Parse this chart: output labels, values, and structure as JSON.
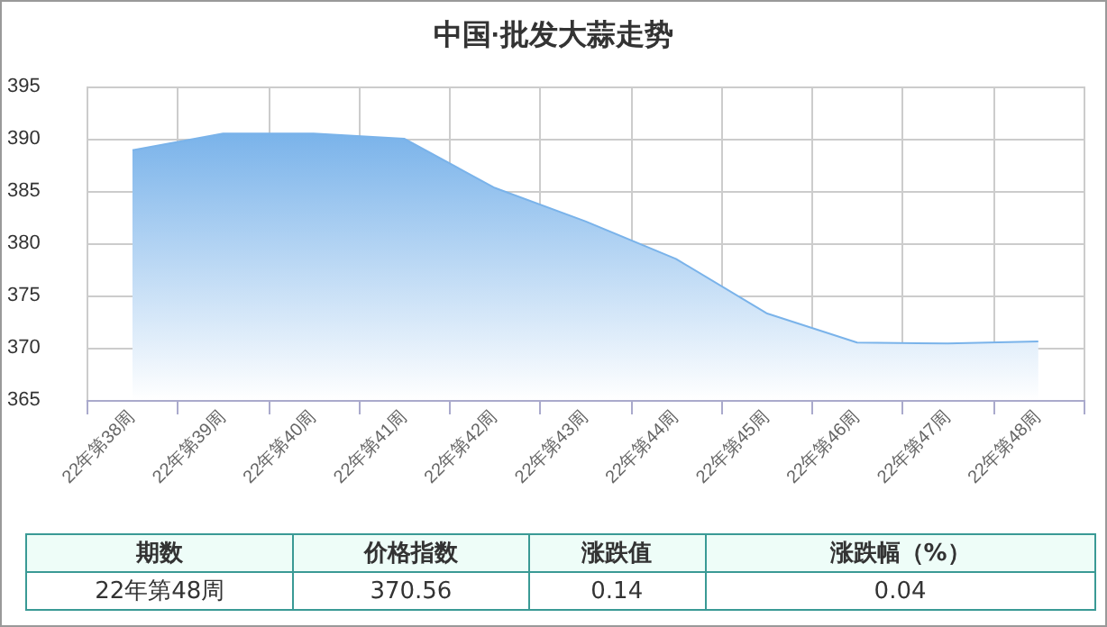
{
  "chart_data": {
    "type": "area",
    "title": "中国·批发大蒜走势",
    "categories": [
      "22年第38周",
      "22年第39周",
      "22年第40周",
      "22年第41周",
      "22年第42周",
      "22年第43周",
      "22年第44周",
      "22年第45周",
      "22年第46周",
      "22年第47周",
      "22年第48周"
    ],
    "series": [
      {
        "color": "#7ab3ea",
        "values": [
          388.9,
          390.5,
          390.5,
          390.0,
          385.3,
          382.1,
          378.5,
          373.3,
          370.5,
          370.4,
          370.6
        ]
      }
    ],
    "ylim": [
      365,
      395
    ],
    "yticks": [
      365,
      370,
      375,
      380,
      385,
      390,
      395
    ],
    "grid": true,
    "marker": "none",
    "annotations": [
      "期数",
      "价格指数",
      "涨跌值",
      "涨跌幅（%）",
      "22年第48周",
      "370.56",
      "0.14",
      "0.04"
    ]
  }
}
